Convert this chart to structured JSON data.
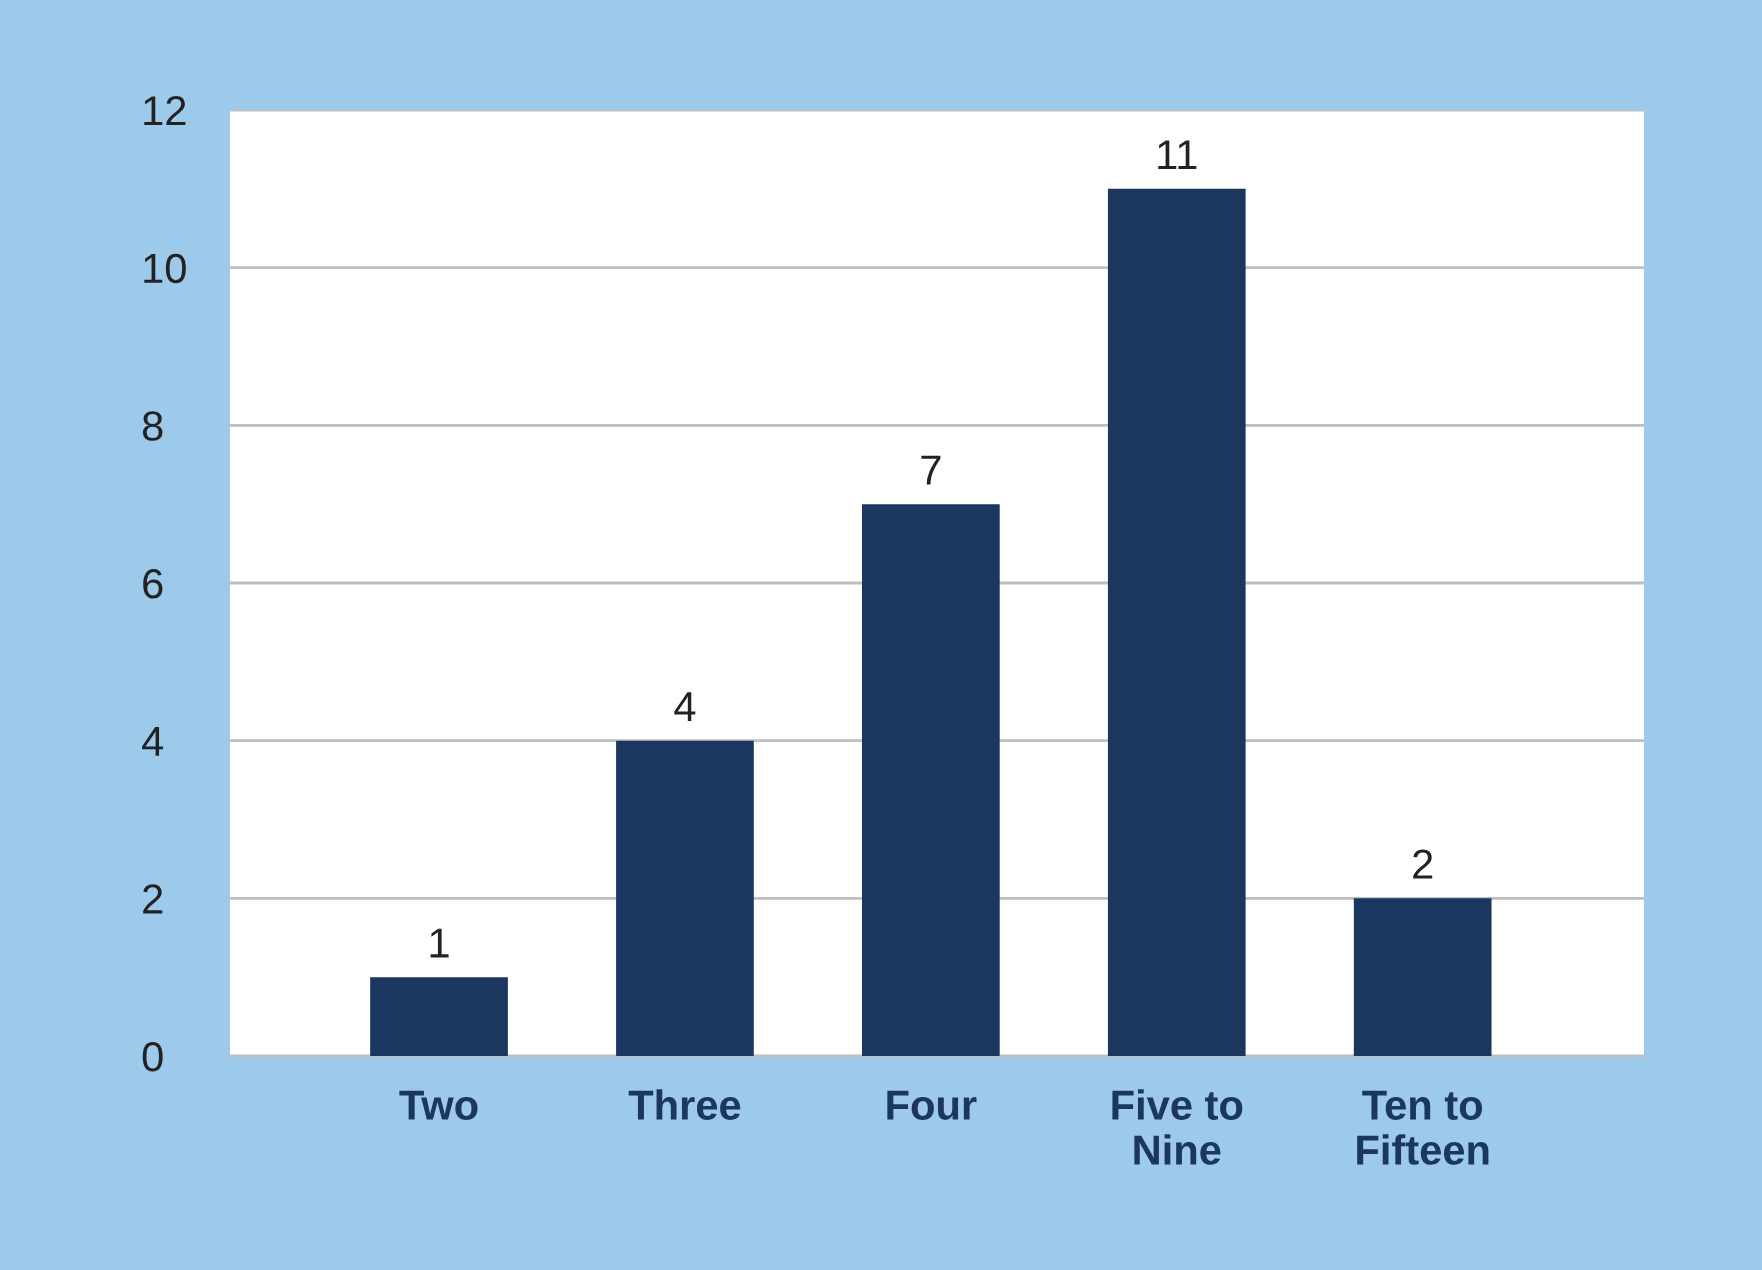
{
  "chart_data": {
    "type": "bar",
    "categories": [
      "Two",
      "Three",
      "Four",
      "Five to\nNine",
      "Ten to\nFifteen"
    ],
    "values": [
      1,
      4,
      7,
      11,
      2
    ],
    "color": "#1b365f",
    "ylim": [
      0,
      12
    ],
    "yticks": [
      0,
      2,
      4,
      6,
      8,
      10,
      12
    ],
    "grid": "y",
    "data_labels": true
  }
}
